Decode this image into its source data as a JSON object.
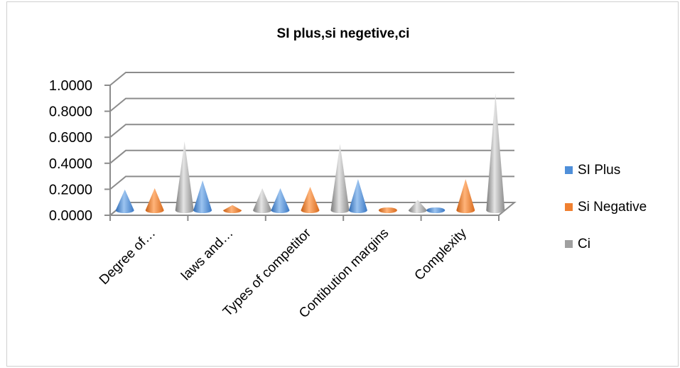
{
  "chart_data": {
    "type": "bar",
    "title": "SI plus,si negetive,ci",
    "categories": [
      "Degree of…",
      "laws and…",
      "Types of competitor",
      "Contibution margins",
      "Complexity"
    ],
    "series": [
      {
        "name": "SI Plus",
        "color": "#4f8fd9",
        "values": [
          0.16,
          0.23,
          0.17,
          0.24,
          0.0
        ]
      },
      {
        "name": "Si Negative",
        "color": "#f08030",
        "values": [
          0.17,
          0.04,
          0.18,
          0.0,
          0.24
        ]
      },
      {
        "name": "Ci",
        "color": "#a0a0a0",
        "values": [
          0.53,
          0.17,
          0.51,
          0.08,
          0.9
        ]
      }
    ],
    "yticks": [
      "0.0000",
      "0.2000",
      "0.4000",
      "0.6000",
      "0.8000",
      "1.0000"
    ],
    "ylim": [
      0,
      1
    ],
    "legend_position": "right",
    "grid": true,
    "style": "3d-cone"
  }
}
